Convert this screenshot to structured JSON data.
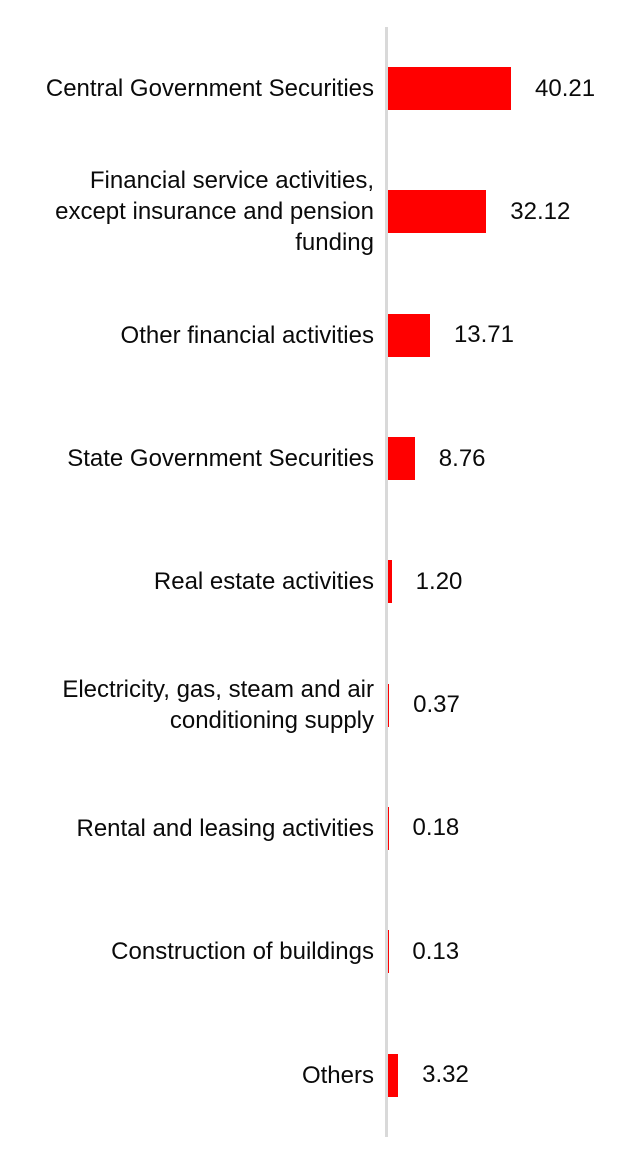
{
  "chart_data": {
    "type": "bar",
    "orientation": "horizontal",
    "title": "",
    "xlabel": "",
    "ylabel": "",
    "grid": false,
    "legend": false,
    "xlim": [
      0,
      45
    ],
    "bar_color": "#ff0000",
    "axis_line_color": "#d9d9d9",
    "text_color": "#0a0a0a",
    "categories": [
      "Central Government Securities",
      "Financial service activities, except insurance and pension funding",
      "Other financial activities",
      "State Government Securities",
      "Real estate activities",
      "Electricity, gas, steam and air conditioning supply",
      "Rental and leasing activities",
      "Construction of buildings",
      "Others"
    ],
    "values": [
      40.21,
      32.12,
      13.71,
      8.76,
      1.2,
      0.37,
      0.18,
      0.13,
      3.32
    ],
    "value_labels": [
      "40.21",
      "32.12",
      "13.71",
      "8.76",
      "1.20",
      "0.37",
      "0.18",
      "0.13",
      "3.32"
    ]
  }
}
